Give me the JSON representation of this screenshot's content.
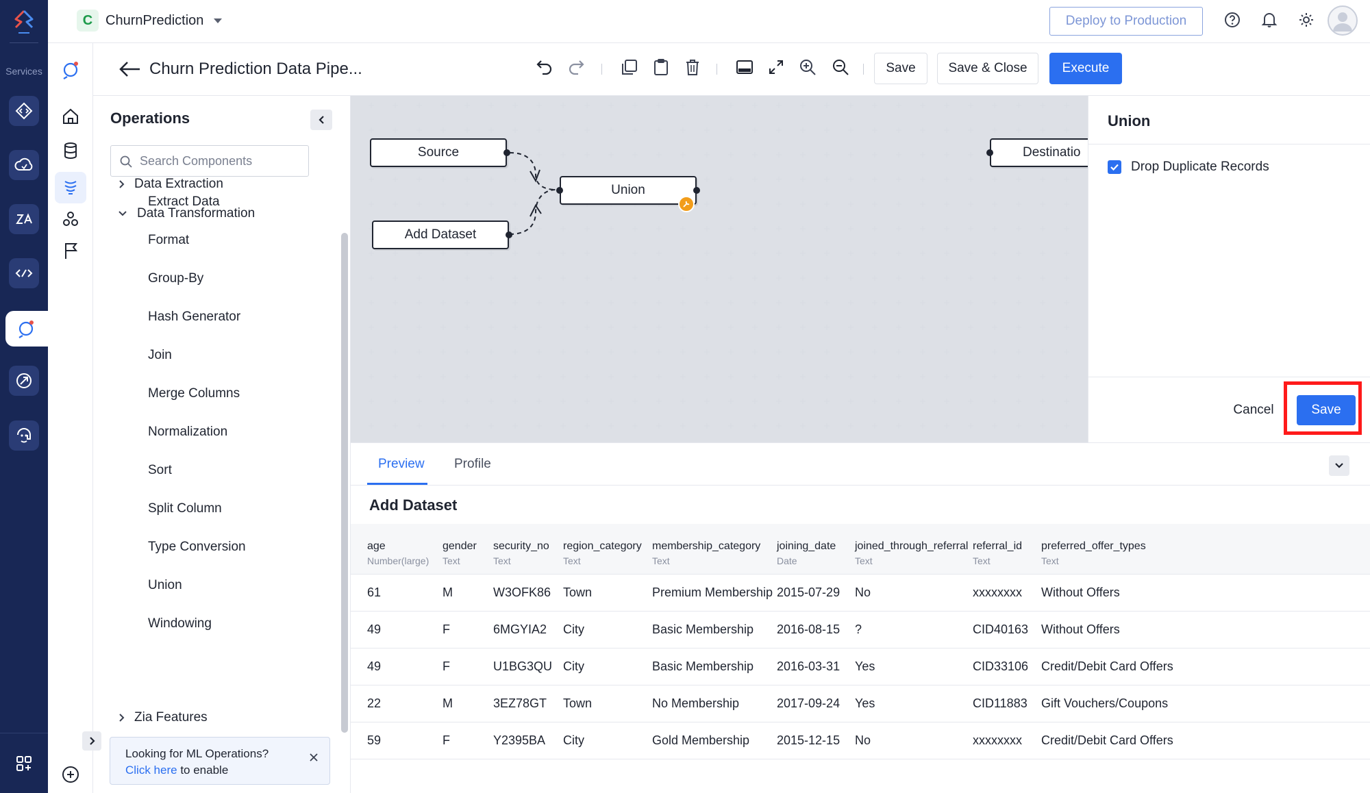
{
  "rail": {
    "services_label": "Services"
  },
  "topbar": {
    "project_initial": "C",
    "project_name": "ChurnPrediction",
    "deploy_label": "Deploy to Production"
  },
  "toolbar": {
    "title": "Churn Prediction Data Pipe...",
    "save_label": "Save",
    "save_close_label": "Save & Close",
    "execute_label": "Execute"
  },
  "operations": {
    "title": "Operations",
    "search_placeholder": "Search Components",
    "categories": {
      "data_extraction": "Data Extraction",
      "data_transformation": "Data Transformation",
      "zia_features": "Zia Features"
    },
    "items": [
      "Extract Data",
      "Format",
      "Group-By",
      "Hash Generator",
      "Join",
      "Merge Columns",
      "Normalization",
      "Sort",
      "Split Column",
      "Type Conversion",
      "Union",
      "Windowing"
    ],
    "banner": {
      "line1": "Looking for ML Operations?",
      "link": "Click here",
      "suffix": " to enable"
    }
  },
  "canvas": {
    "nodes": {
      "source": "Source",
      "add_dataset": "Add Dataset",
      "union": "Union",
      "destination": "Destinatio"
    }
  },
  "props": {
    "title": "Union",
    "drop_duplicates_label": "Drop Duplicate Records",
    "drop_duplicates_checked": true,
    "cancel_label": "Cancel",
    "save_label": "Save"
  },
  "preview": {
    "tabs": [
      "Preview",
      "Profile"
    ],
    "dataset_title": "Add Dataset",
    "columns": [
      {
        "name": "age",
        "type": "Number(large)"
      },
      {
        "name": "gender",
        "type": "Text"
      },
      {
        "name": "security_no",
        "type": "Text"
      },
      {
        "name": "region_category",
        "type": "Text"
      },
      {
        "name": "membership_category",
        "type": "Text"
      },
      {
        "name": "joining_date",
        "type": "Date"
      },
      {
        "name": "joined_through_referral",
        "type": "Text"
      },
      {
        "name": "referral_id",
        "type": "Text"
      },
      {
        "name": "preferred_offer_types",
        "type": "Text"
      }
    ],
    "rows": [
      [
        "61",
        "M",
        "W3OFK86",
        "Town",
        "Premium Membership",
        "2015-07-29",
        "No",
        "xxxxxxxx",
        "Without Offers"
      ],
      [
        "49",
        "F",
        "6MGYIA2",
        "City",
        "Basic Membership",
        "2016-08-15",
        "?",
        "CID40163",
        "Without Offers"
      ],
      [
        "49",
        "F",
        "U1BG3QU",
        "City",
        "Basic Membership",
        "2016-03-31",
        "Yes",
        "CID33106",
        "Credit/Debit Card Offers"
      ],
      [
        "22",
        "M",
        "3EZ78GT",
        "Town",
        "No Membership",
        "2017-09-24",
        "Yes",
        "CID11883",
        "Gift Vouchers/Coupons"
      ],
      [
        "59",
        "F",
        "Y2395BA",
        "City",
        "Gold Membership",
        "2015-12-15",
        "No",
        "xxxxxxxx",
        "Credit/Debit Card Offers"
      ]
    ]
  }
}
